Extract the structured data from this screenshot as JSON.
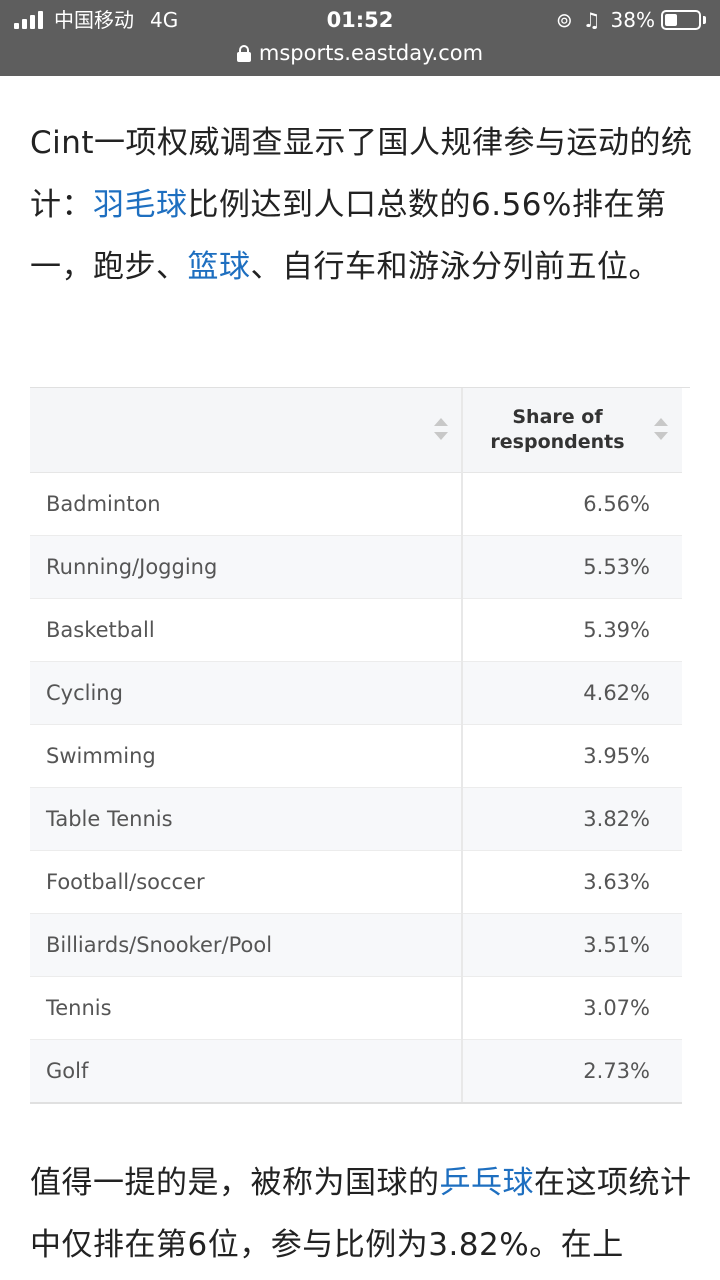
{
  "status_bar": {
    "carrier": "中国移动",
    "network": "4G",
    "time": "01:52",
    "battery_percent": "38%",
    "battery_level": 0.38,
    "icons": [
      "signal-icon",
      "rotation-lock-icon",
      "headphones-icon",
      "battery-icon"
    ]
  },
  "browser": {
    "url": "msports.eastday.com"
  },
  "article": {
    "para1": {
      "t1": "Cint一项权威调查显示了国人规律参与运动的统计：",
      "link1": "羽毛球",
      "t2": "比例达到人口总数的6.56%排在第一，跑步、",
      "link2": "篮球",
      "t3": "、自行车和游泳分列前五位。"
    },
    "para2": {
      "t1": "值得一提的是，被称为国球的",
      "link1": "乒乓球",
      "t2": "在这项统计中仅排在第6位，参与比例为3.82%。在上"
    },
    "link_color": "#1e6fc0"
  },
  "table": {
    "headers": [
      "",
      "Share of respondents"
    ],
    "header_share_line1": "Share of",
    "header_share_line2": "respondents",
    "rows": [
      {
        "sport": "Badminton",
        "share": "6.56%"
      },
      {
        "sport": "Running/Jogging",
        "share": "5.53%"
      },
      {
        "sport": "Basketball",
        "share": "5.39%"
      },
      {
        "sport": "Cycling",
        "share": "4.62%"
      },
      {
        "sport": "Swimming",
        "share": "3.95%"
      },
      {
        "sport": "Table Tennis",
        "share": "3.82%"
      },
      {
        "sport": "Football/soccer",
        "share": "3.63%"
      },
      {
        "sport": "Billiards/Snooker/Pool",
        "share": "3.51%"
      },
      {
        "sport": "Tennis",
        "share": "3.07%"
      },
      {
        "sport": "Golf",
        "share": "2.73%"
      }
    ]
  }
}
